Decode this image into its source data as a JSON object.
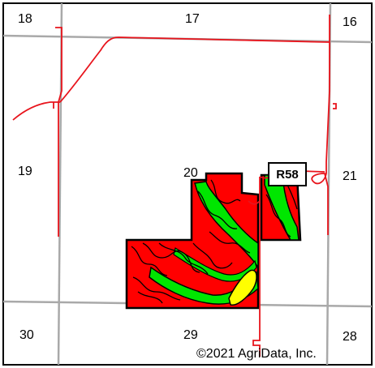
{
  "map": {
    "sections": {
      "s18": "18",
      "s17": "17",
      "s16": "16",
      "s19": "19",
      "s20": "20",
      "s21": "21",
      "s30": "30",
      "s29": "29",
      "s28": "28"
    },
    "road_shield": "R58",
    "copyright": "©2021 AgriData, Inc."
  },
  "colors": {
    "frame": "#000000",
    "section_lines": "#a9a9a9",
    "roads": "#e8141c",
    "soil_red": "#ff0000",
    "soil_green": "#00e600",
    "soil_yellow": "#ffff00",
    "soil_outline": "#000000"
  }
}
